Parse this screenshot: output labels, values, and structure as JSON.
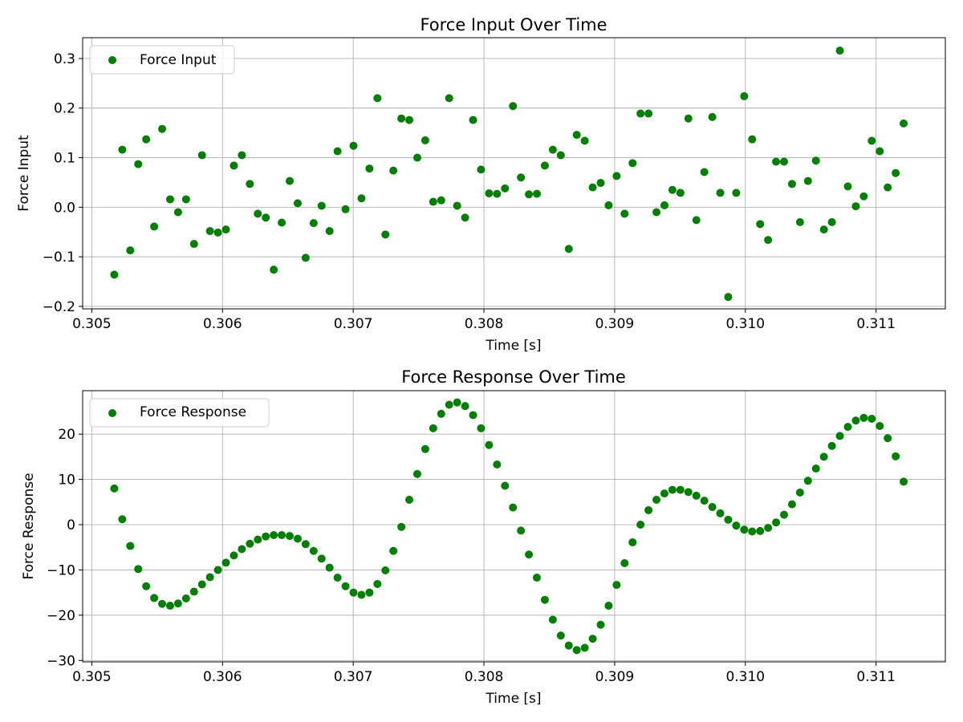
{
  "colors": {
    "marker": "#008000",
    "grid": "#b0b0b0"
  },
  "chart_data": [
    {
      "type": "scatter",
      "title": "Force Input Over Time",
      "xlabel": "Time [s]",
      "ylabel": "Force Input",
      "xlim": [
        0.30493,
        0.31153
      ],
      "ylim": [
        -0.205,
        0.342
      ],
      "xticks": [
        0.305,
        0.306,
        0.307,
        0.308,
        0.309,
        0.31,
        0.311
      ],
      "xtick_labels": [
        "0.305",
        "0.306",
        "0.307",
        "0.308",
        "0.309",
        "0.310",
        "0.311"
      ],
      "yticks": [
        -0.2,
        -0.1,
        0.0,
        0.1,
        0.2,
        0.3
      ],
      "ytick_labels": [
        "−0.2",
        "−0.1",
        "0.0",
        "0.1",
        "0.2",
        "0.3"
      ],
      "grid": true,
      "legend_position": "upper-left",
      "series": [
        {
          "name": "Force Input",
          "color": "#008000",
          "x": [
            0.305172,
            0.305233,
            0.305294,
            0.305355,
            0.305416,
            0.305477,
            0.305538,
            0.305599,
            0.30566,
            0.305721,
            0.305782,
            0.305843,
            0.305904,
            0.305965,
            0.306026,
            0.306087,
            0.306148,
            0.306209,
            0.30627,
            0.306331,
            0.306392,
            0.306453,
            0.306514,
            0.306575,
            0.306636,
            0.306697,
            0.306758,
            0.306819,
            0.30688,
            0.306941,
            0.307002,
            0.307063,
            0.307124,
            0.307185,
            0.307246,
            0.307307,
            0.307368,
            0.307429,
            0.30749,
            0.307551,
            0.307612,
            0.307673,
            0.307734,
            0.307795,
            0.307856,
            0.307917,
            0.307978,
            0.308039,
            0.3081,
            0.308161,
            0.308222,
            0.308283,
            0.308344,
            0.308405,
            0.308466,
            0.308527,
            0.308588,
            0.308649,
            0.30871,
            0.308771,
            0.308832,
            0.308893,
            0.308954,
            0.309015,
            0.309076,
            0.309137,
            0.309198,
            0.309259,
            0.30932,
            0.309381,
            0.309442,
            0.309503,
            0.309564,
            0.309625,
            0.309686,
            0.309747,
            0.309808,
            0.309869,
            0.30993,
            0.309991,
            0.310052,
            0.310113,
            0.310174,
            0.310235,
            0.310296,
            0.310357,
            0.310418,
            0.310479,
            0.31054,
            0.310601,
            0.310662,
            0.310723,
            0.310784,
            0.310845,
            0.310906,
            0.310967,
            0.311028,
            0.311089,
            0.31115,
            0.311211
          ],
          "y": [
            -0.136,
            0.116,
            -0.087,
            0.087,
            0.137,
            -0.039,
            0.158,
            0.016,
            -0.01,
            0.016,
            -0.074,
            0.105,
            -0.048,
            -0.051,
            -0.045,
            0.084,
            0.105,
            0.047,
            -0.013,
            -0.021,
            -0.126,
            -0.031,
            0.053,
            0.008,
            -0.102,
            -0.032,
            0.003,
            -0.048,
            0.113,
            -0.004,
            0.124,
            0.018,
            0.078,
            0.22,
            -0.055,
            0.074,
            0.179,
            0.176,
            0.1,
            0.135,
            0.011,
            0.014,
            0.22,
            0.003,
            -0.021,
            0.176,
            0.076,
            0.028,
            0.027,
            0.038,
            0.204,
            0.06,
            0.026,
            0.027,
            0.084,
            0.116,
            0.105,
            -0.084,
            0.146,
            0.134,
            0.04,
            0.049,
            0.004,
            0.063,
            -0.013,
            0.089,
            0.189,
            0.189,
            -0.01,
            0.004,
            0.035,
            0.029,
            0.179,
            -0.026,
            0.071,
            0.182,
            0.029,
            -0.181,
            0.029,
            0.224,
            0.137,
            -0.034,
            -0.066,
            0.092,
            0.092,
            0.047,
            -0.03,
            0.053,
            0.094,
            -0.045,
            -0.03,
            0.316,
            0.042,
            0.002,
            0.022,
            0.134,
            0.113,
            0.04,
            0.069,
            0.169
          ]
        }
      ]
    },
    {
      "type": "scatter",
      "title": "Force Response Over Time",
      "xlabel": "Time [s]",
      "ylabel": "Force Response",
      "xlim": [
        0.30493,
        0.31153
      ],
      "ylim": [
        -30.3,
        29.6
      ],
      "xticks": [
        0.305,
        0.306,
        0.307,
        0.308,
        0.309,
        0.31,
        0.311
      ],
      "xtick_labels": [
        "0.305",
        "0.306",
        "0.307",
        "0.308",
        "0.309",
        "0.310",
        "0.311"
      ],
      "yticks": [
        -30,
        -20,
        -10,
        0,
        10,
        20
      ],
      "ytick_labels": [
        "−30",
        "−20",
        "−10",
        "0",
        "10",
        "20"
      ],
      "grid": true,
      "legend_position": "upper-left",
      "series": [
        {
          "name": "Force Response",
          "color": "#008000",
          "x": [
            0.305172,
            0.305233,
            0.305294,
            0.305355,
            0.305416,
            0.305477,
            0.305538,
            0.305599,
            0.30566,
            0.305721,
            0.305782,
            0.305843,
            0.305904,
            0.305965,
            0.306026,
            0.306087,
            0.306148,
            0.306209,
            0.30627,
            0.306331,
            0.306392,
            0.306453,
            0.306514,
            0.306575,
            0.306636,
            0.306697,
            0.306758,
            0.306819,
            0.30688,
            0.306941,
            0.307002,
            0.307063,
            0.307124,
            0.307185,
            0.307246,
            0.307307,
            0.307368,
            0.307429,
            0.30749,
            0.307551,
            0.307612,
            0.307673,
            0.307734,
            0.307795,
            0.307856,
            0.307917,
            0.307978,
            0.308039,
            0.3081,
            0.308161,
            0.308222,
            0.308283,
            0.308344,
            0.308405,
            0.308466,
            0.308527,
            0.308588,
            0.308649,
            0.30871,
            0.308771,
            0.308832,
            0.308893,
            0.308954,
            0.309015,
            0.309076,
            0.309137,
            0.309198,
            0.309259,
            0.30932,
            0.309381,
            0.309442,
            0.309503,
            0.309564,
            0.309625,
            0.309686,
            0.309747,
            0.309808,
            0.309869,
            0.30993,
            0.309991,
            0.310052,
            0.310113,
            0.310174,
            0.310235,
            0.310296,
            0.310357,
            0.310418,
            0.310479,
            0.31054,
            0.310601,
            0.310662,
            0.310723,
            0.310784,
            0.310845,
            0.310906,
            0.310967,
            0.311028,
            0.311089,
            0.31115,
            0.311211
          ],
          "y": [
            8.0,
            1.2,
            -4.7,
            -9.8,
            -13.6,
            -16.2,
            -17.5,
            -17.9,
            -17.4,
            -16.3,
            -14.8,
            -13.2,
            -11.6,
            -10.0,
            -8.4,
            -6.8,
            -5.4,
            -4.2,
            -3.3,
            -2.6,
            -2.3,
            -2.3,
            -2.5,
            -3.1,
            -4.3,
            -5.8,
            -7.5,
            -9.5,
            -11.7,
            -13.6,
            -15.0,
            -15.5,
            -15.0,
            -13.1,
            -10.1,
            -5.8,
            -0.5,
            5.5,
            11.2,
            16.7,
            21.3,
            24.5,
            26.5,
            27.0,
            26.2,
            24.2,
            21.3,
            17.6,
            13.3,
            8.6,
            3.8,
            -1.3,
            -6.6,
            -11.7,
            -16.6,
            -21.0,
            -24.5,
            -26.7,
            -27.7,
            -27.2,
            -25.2,
            -22.1,
            -17.9,
            -13.3,
            -8.5,
            -3.9,
            0.0,
            3.2,
            5.5,
            6.9,
            7.7,
            7.7,
            7.2,
            6.4,
            5.3,
            3.9,
            2.5,
            1.1,
            -0.2,
            -1.1,
            -1.5,
            -1.4,
            -0.7,
            0.5,
            2.2,
            4.5,
            7.1,
            9.7,
            12.4,
            15.0,
            17.4,
            19.6,
            21.6,
            23.0,
            23.6,
            23.4,
            21.8,
            19.1,
            15.1,
            9.5
          ]
        }
      ]
    }
  ]
}
